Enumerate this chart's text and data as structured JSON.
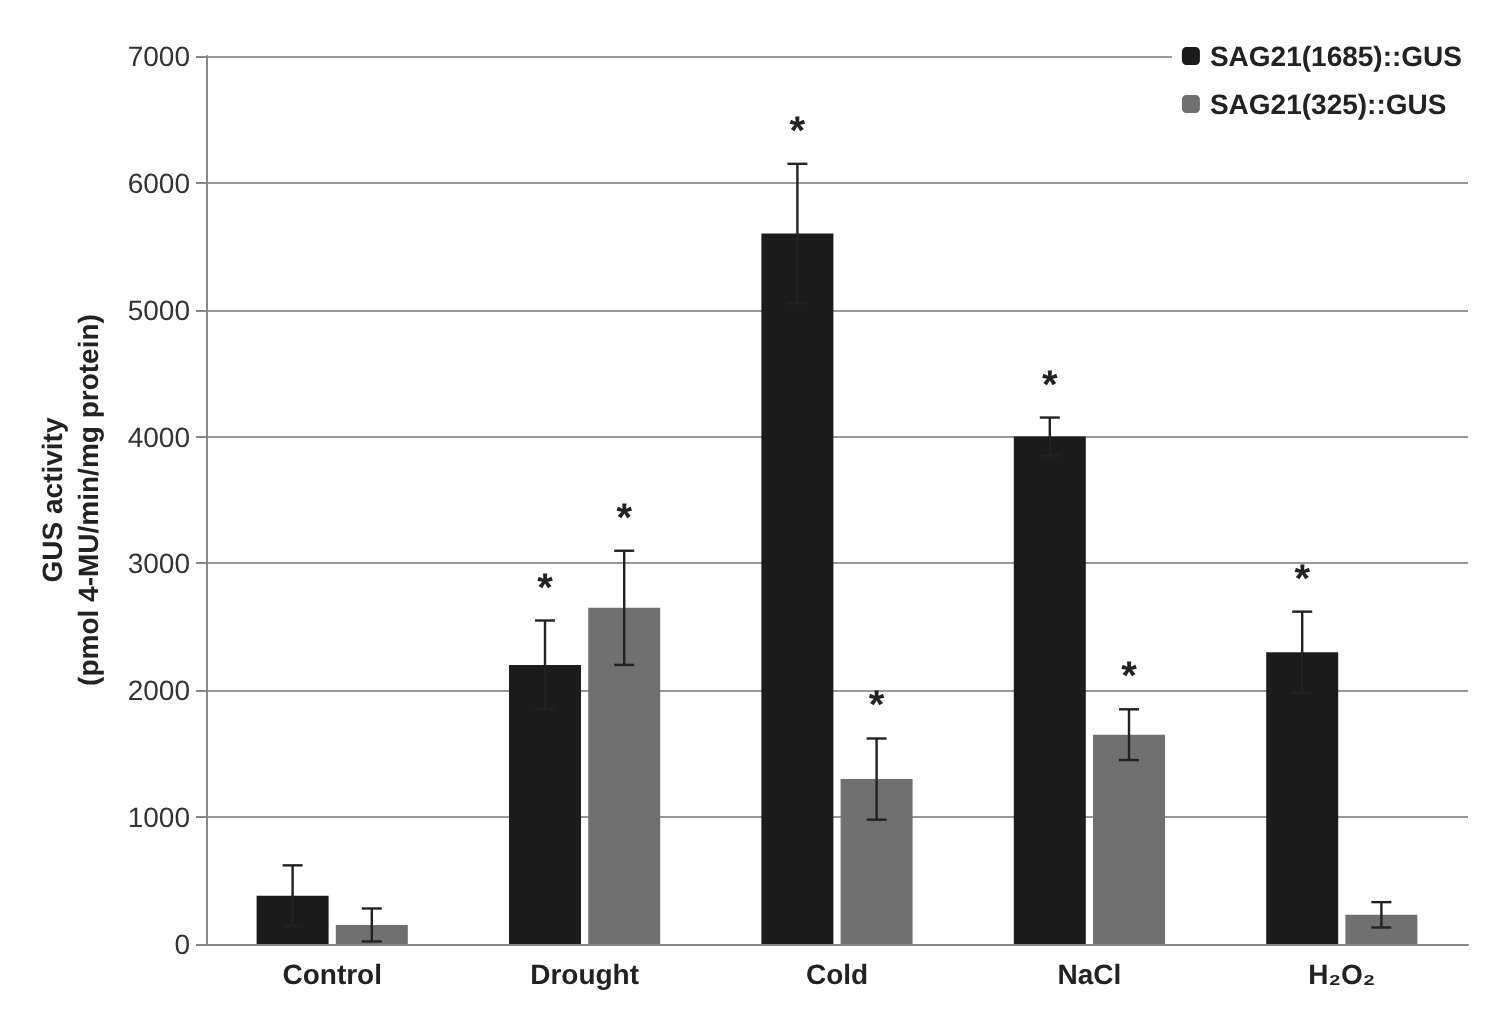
{
  "chart_data": {
    "type": "bar",
    "ylabel": "GUS activity\n(pmol 4-MU/min/mg protein)",
    "categories": [
      "Control",
      "Drought",
      "Cold",
      "NaCl",
      "H₂O₂"
    ],
    "series": [
      {
        "name": "SAG21(1685)::GUS",
        "color": "#1c1c1c",
        "values": [
          380,
          2200,
          5600,
          4000,
          2300
        ],
        "errors": [
          240,
          350,
          550,
          150,
          320
        ]
      },
      {
        "name": "SAG21(325)::GUS",
        "color": "#707070",
        "values": [
          150,
          2650,
          1300,
          1650,
          230
        ],
        "errors": [
          130,
          450,
          320,
          200,
          100
        ]
      }
    ],
    "ylim": [
      0,
      7000
    ],
    "yticks": [
      0,
      1000,
      2000,
      3000,
      4000,
      5000,
      6000,
      7000
    ],
    "grid": "y",
    "legend": "top right",
    "annotations": [
      {
        "text": "*",
        "x": "Drought",
        "y": 2200
      },
      {
        "text": "*",
        "x": "Drought",
        "y": 2650
      },
      {
        "text": "*",
        "x": "Cold",
        "y": 5600
      },
      {
        "text": "*",
        "x": "Cold",
        "y": 1300
      },
      {
        "text": "*",
        "x": "NaCl",
        "y": 4000
      },
      {
        "text": "*",
        "x": "NaCl",
        "y": 1650
      },
      {
        "text": "*",
        "x": "H₂O₂",
        "y": 2300
      }
    ]
  }
}
